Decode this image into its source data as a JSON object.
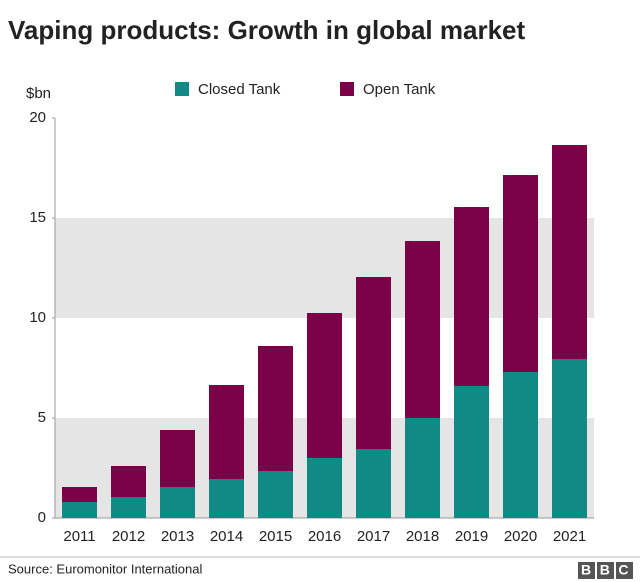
{
  "chart_data": {
    "type": "stacked_bar",
    "title": "Vaping products: Growth in global market",
    "y_label": "$bn",
    "categories": [
      "2011",
      "2012",
      "2013",
      "2014",
      "2015",
      "2016",
      "2017",
      "2018",
      "2019",
      "2020",
      "2021"
    ],
    "series": [
      {
        "name": "Closed Tank",
        "color": "#118a85",
        "values": [
          0.8,
          1.05,
          1.55,
          1.95,
          2.35,
          3.0,
          3.45,
          5.0,
          6.6,
          7.3,
          7.95
        ]
      },
      {
        "name": "Open Tank",
        "color": "#7c0047",
        "values": [
          0.75,
          1.55,
          2.85,
          4.7,
          6.25,
          7.25,
          8.6,
          8.85,
          8.95,
          9.85,
          10.7
        ]
      }
    ],
    "ylim": [
      0,
      20
    ],
    "yticks": [
      0,
      5,
      10,
      15,
      20
    ],
    "grid": "bands",
    "source": "Source: Euromonitor International",
    "logo": "BBC"
  }
}
